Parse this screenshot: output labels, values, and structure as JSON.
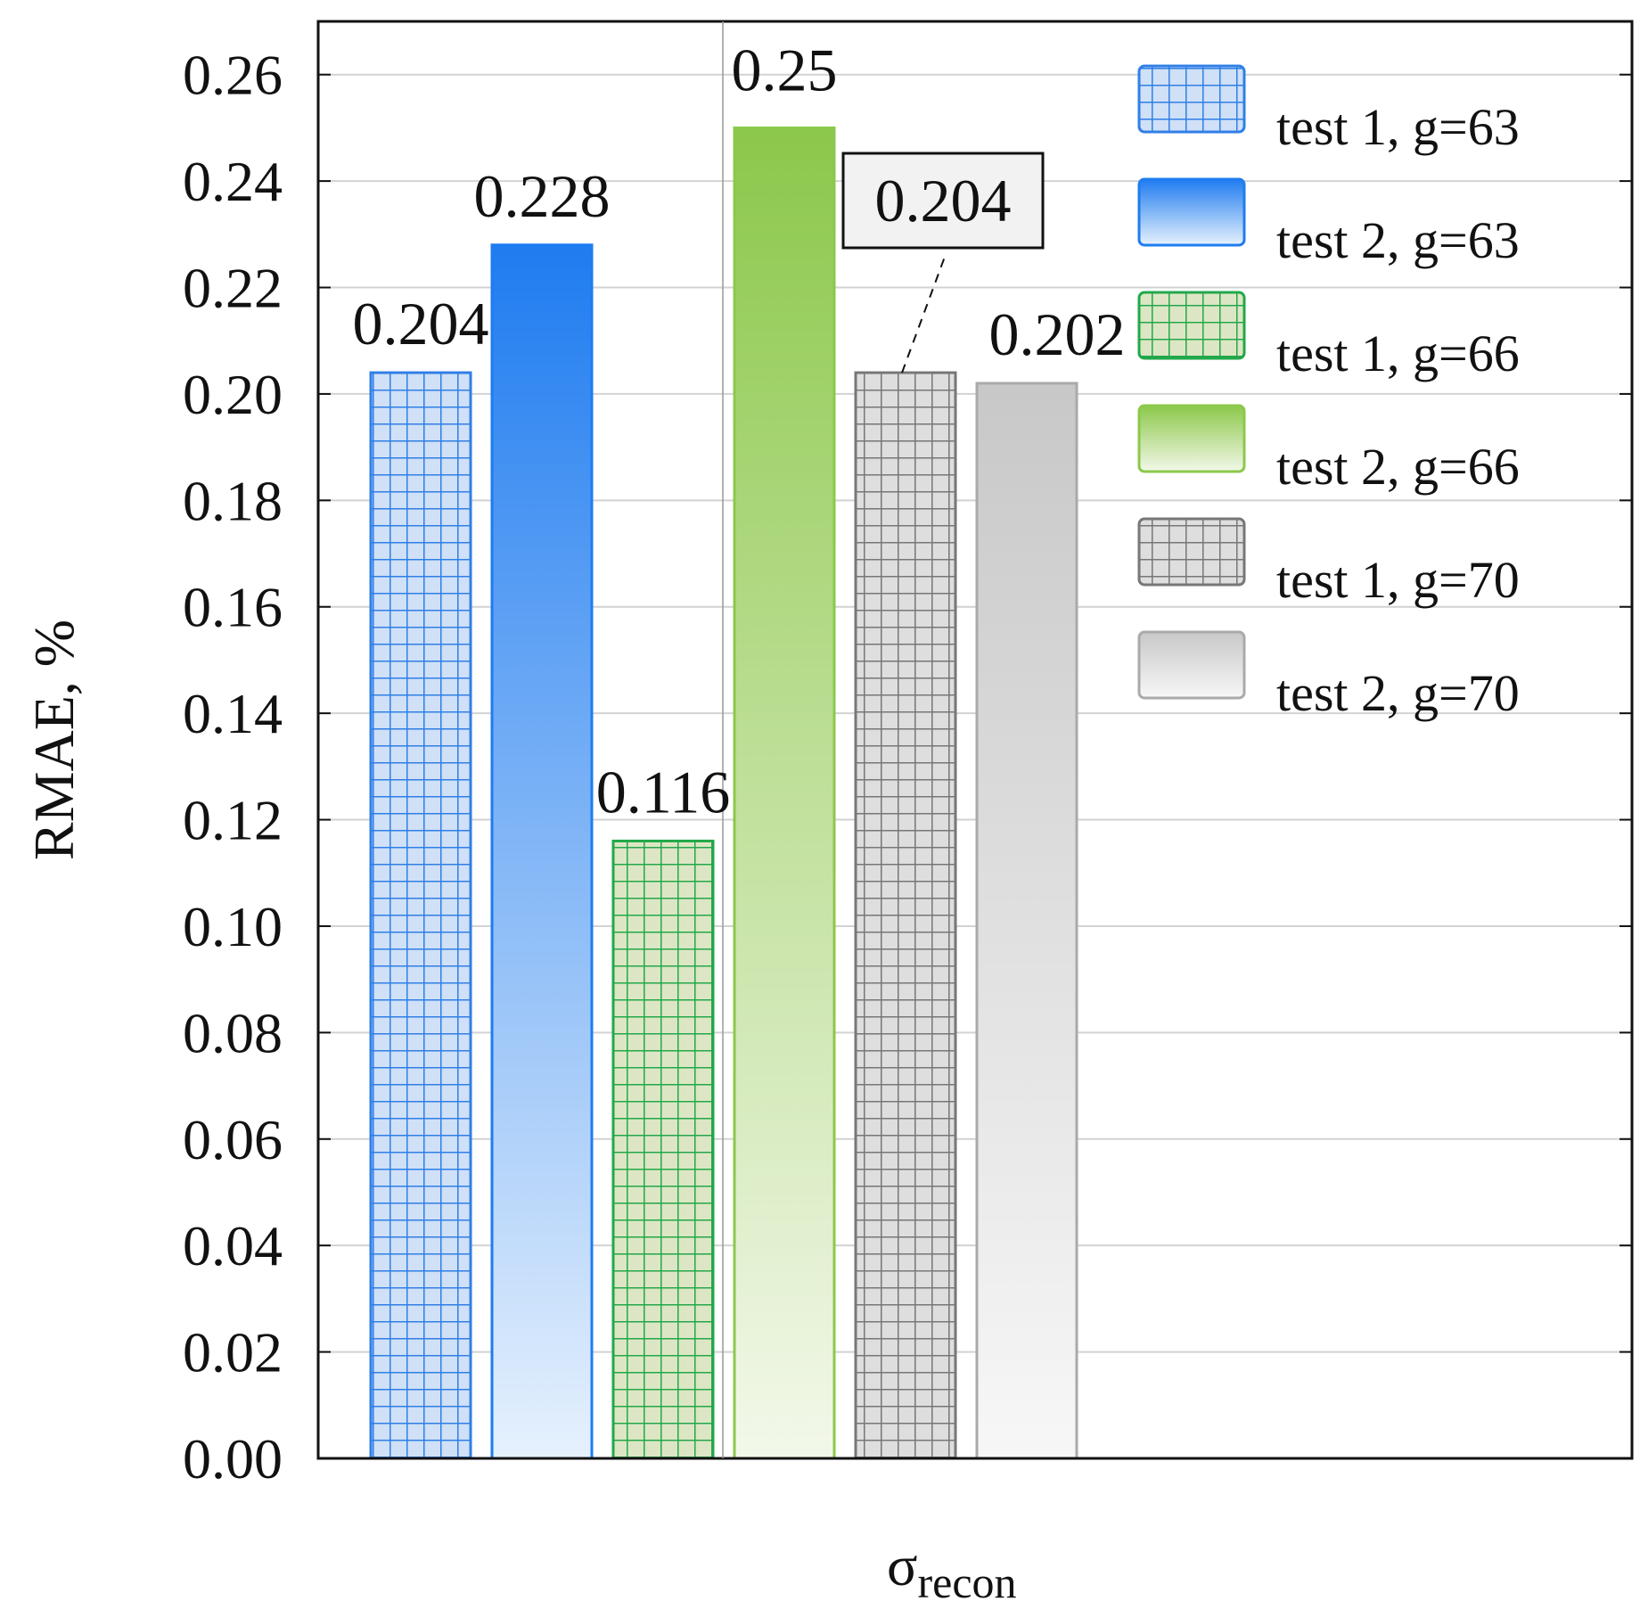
{
  "chart_data": {
    "type": "bar",
    "xlabel": "σ",
    "xlabel_subscript": "recon",
    "ylabel": "RMAE, %",
    "ylim": [
      0,
      0.27
    ],
    "yticks": [
      "0.00",
      "0.02",
      "0.04",
      "0.06",
      "0.08",
      "0.10",
      "0.12",
      "0.14",
      "0.16",
      "0.18",
      "0.20",
      "0.22",
      "0.24",
      "0.26"
    ],
    "grid": true,
    "legend_position": "top-right",
    "series": [
      {
        "name": "test 1, g=63",
        "value": 0.204,
        "label": "0.204",
        "color": "#2f7fe6",
        "fill": "hatch"
      },
      {
        "name": "test 2, g=63",
        "value": 0.228,
        "label": "0.228",
        "color": "#1f7cf0",
        "fill": "gradient"
      },
      {
        "name": "test 1, g=66",
        "value": 0.116,
        "label": "0.116",
        "color": "#22a84a",
        "fill": "hatch"
      },
      {
        "name": "test 2, g=66",
        "value": 0.25,
        "label": "0.25",
        "color": "#8cc84b",
        "fill": "gradient"
      },
      {
        "name": "test 1, g=70",
        "value": 0.204,
        "label": "0.204",
        "color": "#777777",
        "fill": "hatch",
        "callout": true
      },
      {
        "name": "test 2, g=70",
        "value": 0.202,
        "label": "0.202",
        "color": "#aaaaaa",
        "fill": "gradient"
      }
    ]
  }
}
